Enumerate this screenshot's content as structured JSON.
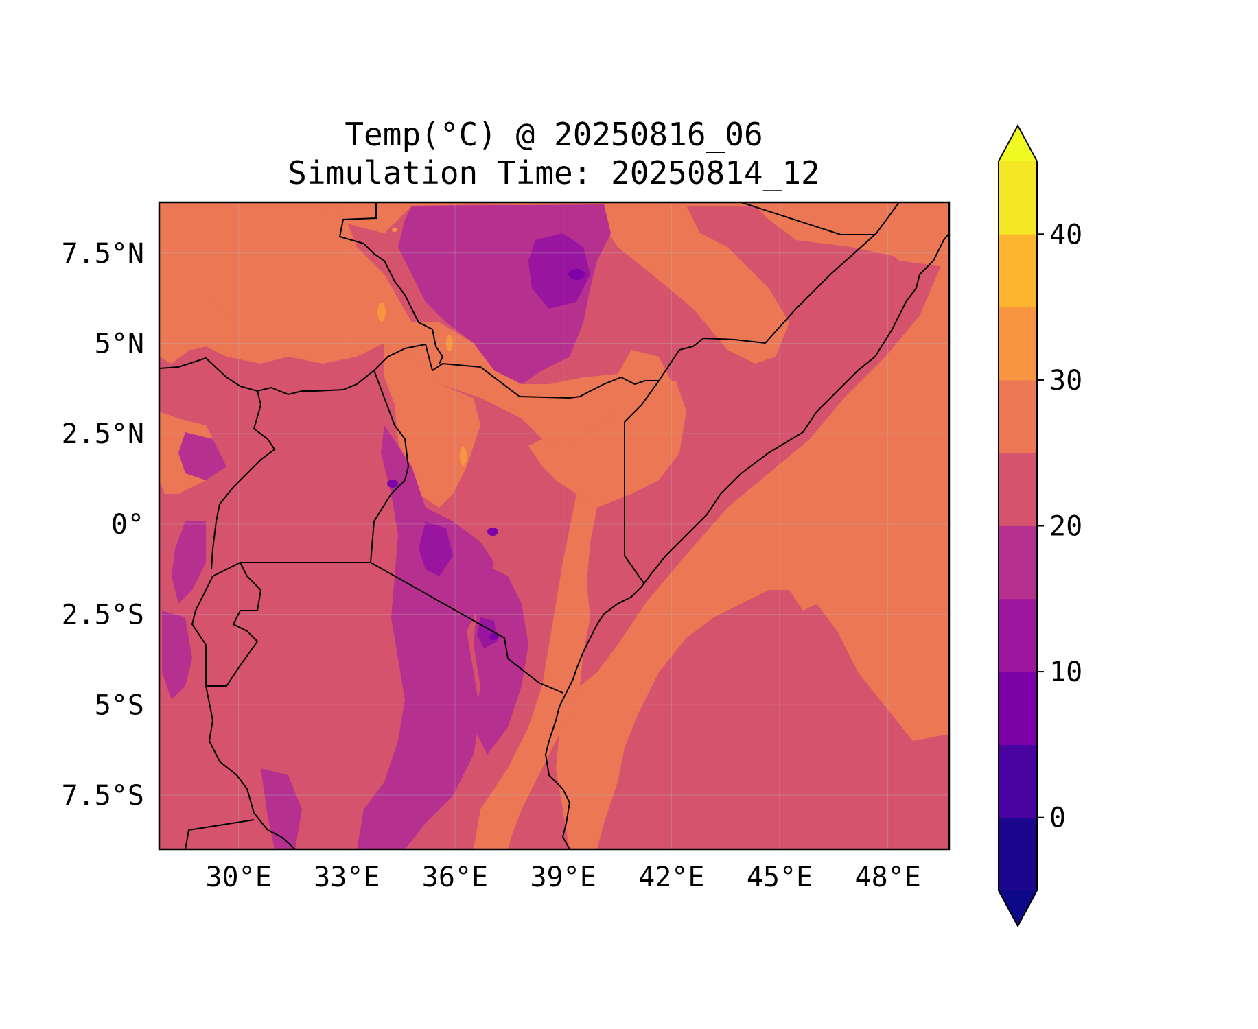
{
  "title": {
    "line1": "Temp(°C) @ 20250816_06",
    "line2": "Simulation Time: 20250814_12"
  },
  "map": {
    "type": "filled-contour map",
    "lon_range": [
      27.8,
      49.7
    ],
    "lat_range": [
      -9.0,
      8.9
    ],
    "lon_ticks": [
      {
        "value": 30,
        "label": "30°E"
      },
      {
        "value": 33,
        "label": "33°E"
      },
      {
        "value": 36,
        "label": "36°E"
      },
      {
        "value": 39,
        "label": "39°E"
      },
      {
        "value": 42,
        "label": "42°E"
      },
      {
        "value": 45,
        "label": "45°E"
      },
      {
        "value": 48,
        "label": "48°E"
      }
    ],
    "lat_ticks": [
      {
        "value": 7.5,
        "label": "7.5°N"
      },
      {
        "value": 5,
        "label": "5°N"
      },
      {
        "value": 2.5,
        "label": "2.5°N"
      },
      {
        "value": 0,
        "label": "0°"
      },
      {
        "value": -2.5,
        "label": "2.5°S"
      },
      {
        "value": -5,
        "label": "5°S"
      },
      {
        "value": -7.5,
        "label": "7.5°S"
      }
    ],
    "grid": true,
    "colors": {
      "below_15": "#b5308f",
      "15_20": "#b5308f",
      "20_25": "#d6536d",
      "25_30": "#ec7754",
      "30_35": "#f89540",
      "cold_10_15": "#9915a0",
      "cold_5_10": "#7c02a8"
    }
  },
  "colorbar": {
    "levels": [
      -5,
      0,
      5,
      10,
      15,
      20,
      25,
      30,
      35,
      40,
      45
    ],
    "colors": [
      "#1b068d",
      "#4903a0",
      "#7c02a8",
      "#9c179e",
      "#b5308f",
      "#d6536d",
      "#ec7754",
      "#f89540",
      "#fdb42f",
      "#f5e626"
    ],
    "under_color": "#0d0887",
    "over_color": "#f0f921",
    "ticks": [
      {
        "value": 0,
        "label": "0"
      },
      {
        "value": 10,
        "label": "10"
      },
      {
        "value": 20,
        "label": "20"
      },
      {
        "value": 30,
        "label": "30"
      },
      {
        "value": 40,
        "label": "40"
      }
    ]
  }
}
